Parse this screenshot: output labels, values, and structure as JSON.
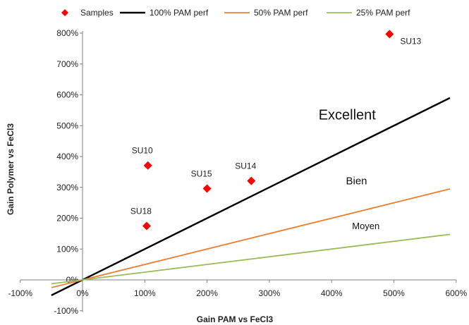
{
  "chart_data": {
    "type": "scatter",
    "xlabel": "Gain PAM vs FeCl3",
    "ylabel": "Gain Polymer vs FeCl3",
    "xlim": [
      -100,
      600
    ],
    "ylim": [
      -100,
      800
    ],
    "xticks": [
      -100,
      0,
      100,
      200,
      300,
      400,
      500,
      600
    ],
    "yticks": [
      -100,
      0,
      100,
      200,
      300,
      400,
      500,
      600,
      700,
      800
    ],
    "xtick_labels": [
      "-100%",
      "0%",
      "100%",
      "200%",
      "300%",
      "400%",
      "500%",
      "600%"
    ],
    "ytick_labels": [
      "-100%",
      "0%",
      "100%",
      "200%",
      "300%",
      "400%",
      "500%",
      "600%",
      "700%",
      "800%"
    ],
    "grid": false,
    "legend_position": "top",
    "samples": {
      "name": "Samples",
      "color": "#ff0000",
      "marker": "diamond",
      "points": [
        {
          "label": "SU13",
          "x": 493,
          "y": 797
        },
        {
          "label": "SU10",
          "x": 105,
          "y": 371
        },
        {
          "label": "SU15",
          "x": 200,
          "y": 296
        },
        {
          "label": "SU14",
          "x": 271,
          "y": 321
        },
        {
          "label": "SU18",
          "x": 103,
          "y": 175
        }
      ]
    },
    "lines": [
      {
        "name": "100% PAM perf",
        "slope": 1.0,
        "color": "#000000",
        "x_range": [
          -50,
          590
        ]
      },
      {
        "name": "50% PAM perf",
        "slope": 0.5,
        "color": "#ed7d31",
        "x_range": [
          -50,
          590
        ]
      },
      {
        "name": "25% PAM perf",
        "slope": 0.25,
        "color": "#9bbb59",
        "x_range": [
          -50,
          590
        ]
      }
    ],
    "annotations": [
      {
        "text": "Excellent",
        "x": 425,
        "y": 520,
        "style": "big"
      },
      {
        "text": "Bien",
        "x": 440,
        "y": 310,
        "style": "mid"
      },
      {
        "text": "Moyen",
        "x": 455,
        "y": 165,
        "style": "small"
      }
    ]
  }
}
